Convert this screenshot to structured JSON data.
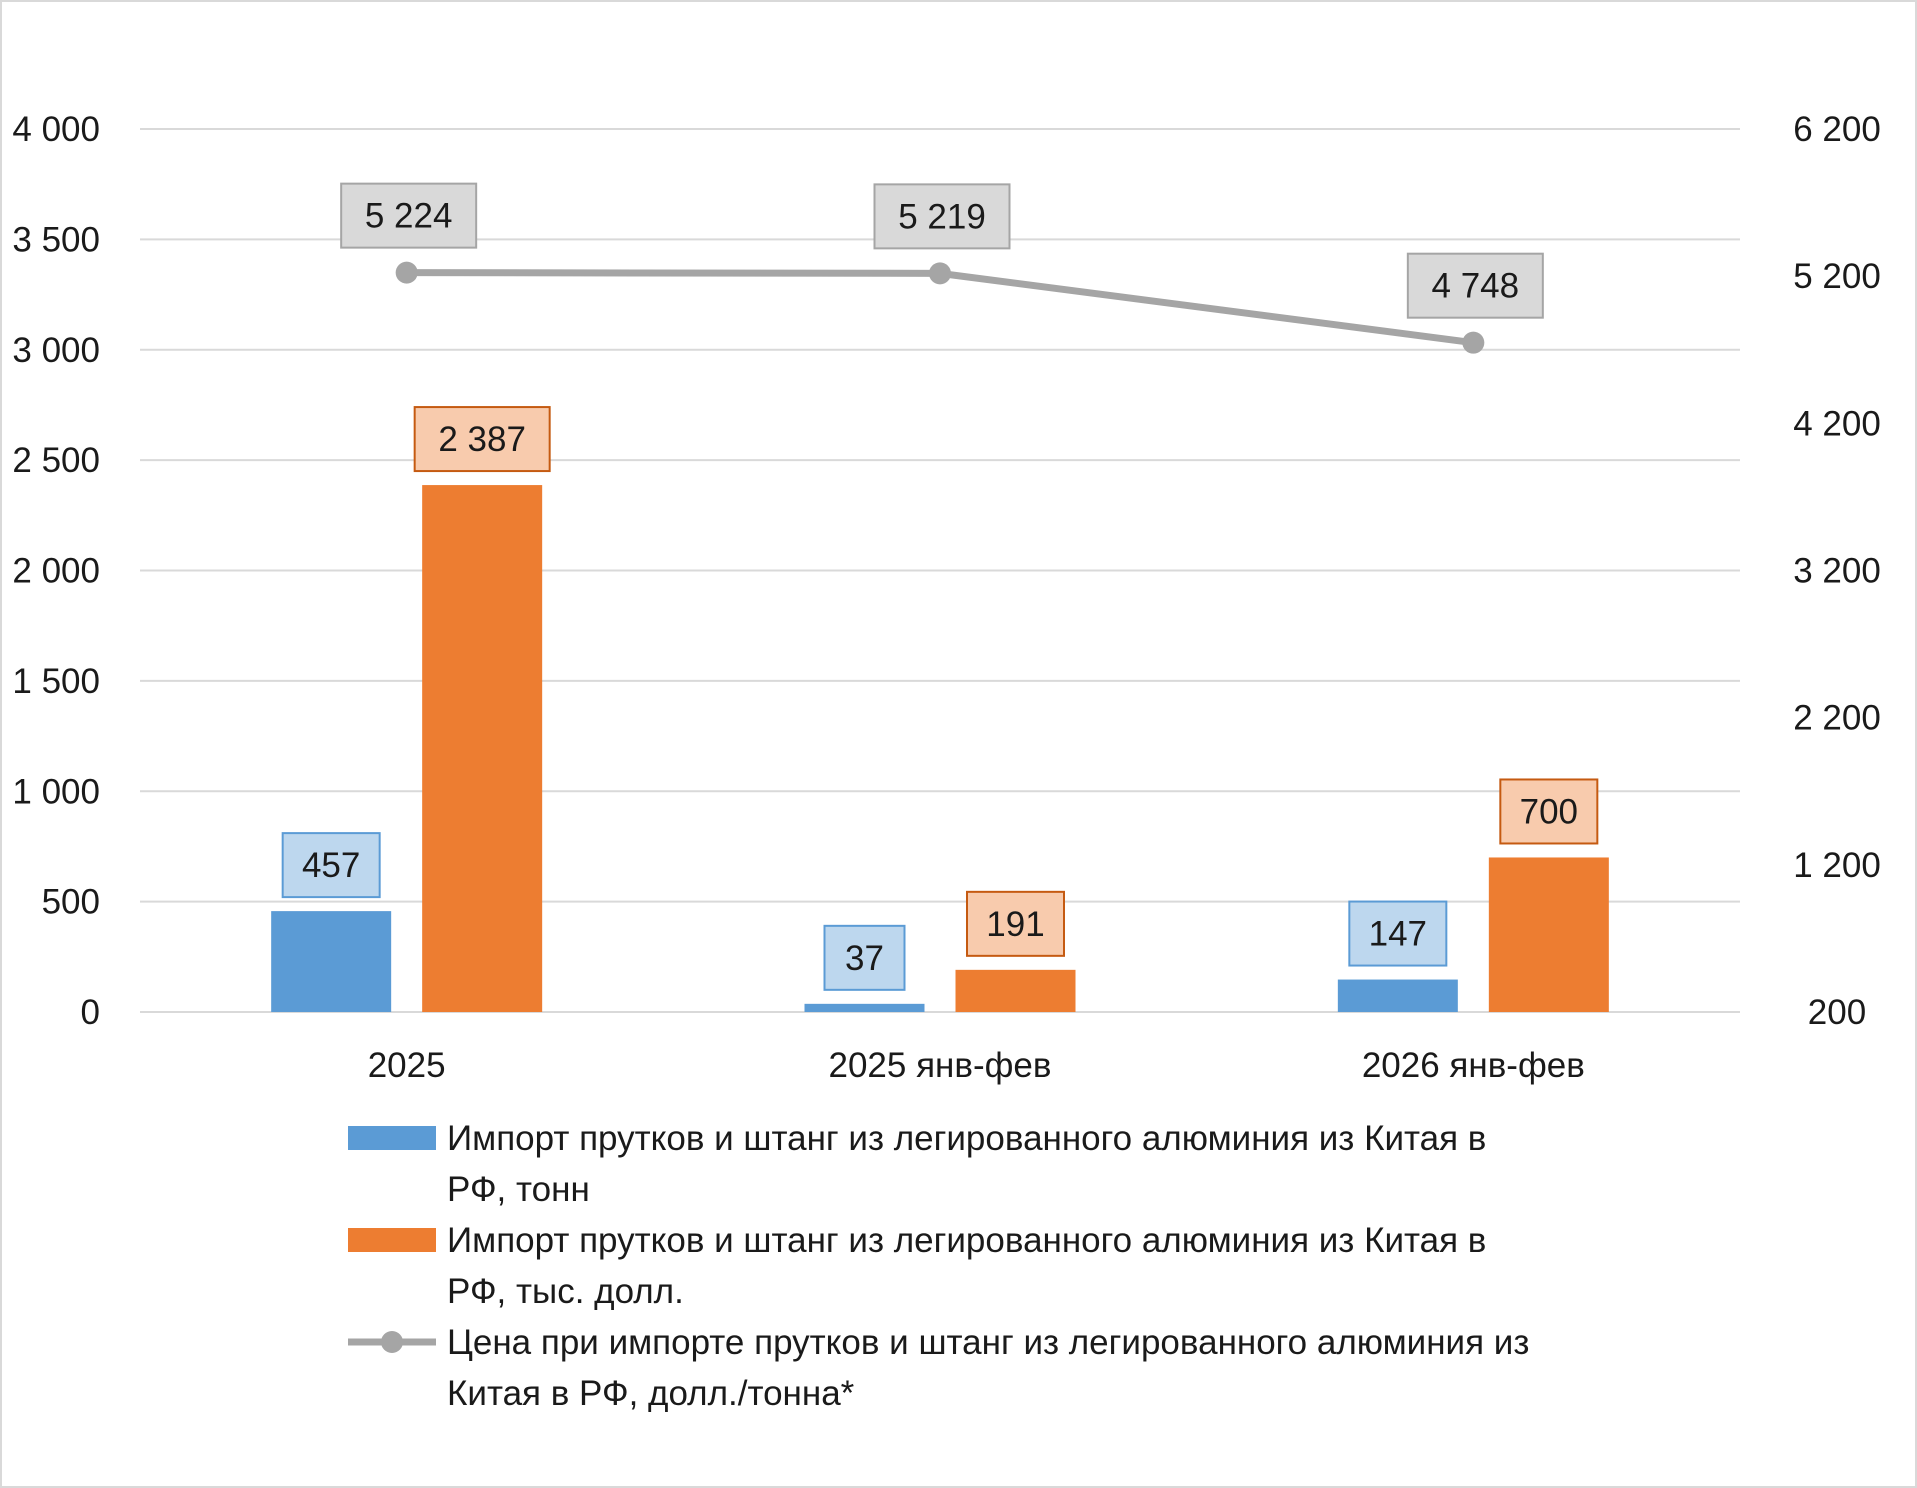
{
  "chart_data": {
    "type": "bar",
    "categories": [
      "2025",
      "2025 янв-фев",
      "2026 янв-фев"
    ],
    "series": [
      {
        "name": "Импорт прутков и штанг из легированного алюминия из Китая в РФ, тонн",
        "type": "bar",
        "axis": "left",
        "values": [
          457,
          37,
          147
        ],
        "labels": [
          "457",
          "37",
          "147"
        ],
        "color": "#5b9bd5",
        "label_fill": "#bdd7ee",
        "label_border": "#5b9bd5"
      },
      {
        "name": "Импорт прутков и штанг из легированного алюминия из Китая в РФ, тыс. долл.",
        "type": "bar",
        "axis": "left",
        "values": [
          2387,
          191,
          700
        ],
        "labels": [
          "2 387",
          "191",
          "700"
        ],
        "color": "#ed7d31",
        "label_fill": "#f8cbad",
        "label_border": "#c55a11"
      },
      {
        "name": "Цена при импорте прутков и штанг из легированного алюминия из Китая в РФ, долл./тонна*",
        "type": "line",
        "axis": "right",
        "values": [
          5224,
          5219,
          4748
        ],
        "labels": [
          "5 224",
          "5 219",
          "4 748"
        ],
        "color": "#a5a5a5",
        "label_fill": "#d9d9d9",
        "label_border": "#a5a5a5"
      }
    ],
    "y_left": {
      "ylim": [
        0,
        4000
      ],
      "ticks": [
        0,
        500,
        1000,
        1500,
        2000,
        2500,
        3000,
        3500,
        4000
      ],
      "tick_labels": [
        "0",
        "500",
        "1 000",
        "1 500",
        "2 000",
        "2 500",
        "3 000",
        "3 500",
        "4 000"
      ]
    },
    "y_right": {
      "ylim": [
        200,
        6200
      ],
      "ticks": [
        200,
        1200,
        2200,
        3200,
        4200,
        5200,
        6200
      ],
      "tick_labels": [
        "200",
        "1 200",
        "2 200",
        "3 200",
        "4 200",
        "5 200",
        "6 200"
      ]
    },
    "grid": true,
    "gridline_color": "#d9d9d9",
    "legend_placement": "bottom",
    "legend": [
      {
        "lines": [
          "Импорт прутков и штанг из легированного алюминия из Китая в",
          "РФ, тонн"
        ]
      },
      {
        "lines": [
          "Импорт прутков и штанг из легированного алюминия из Китая в",
          "РФ, тыс. долл."
        ]
      },
      {
        "lines": [
          "Цена при импорте прутков и штанг из легированного алюминия из",
          "Китая в РФ, долл./тонна*"
        ]
      }
    ]
  }
}
